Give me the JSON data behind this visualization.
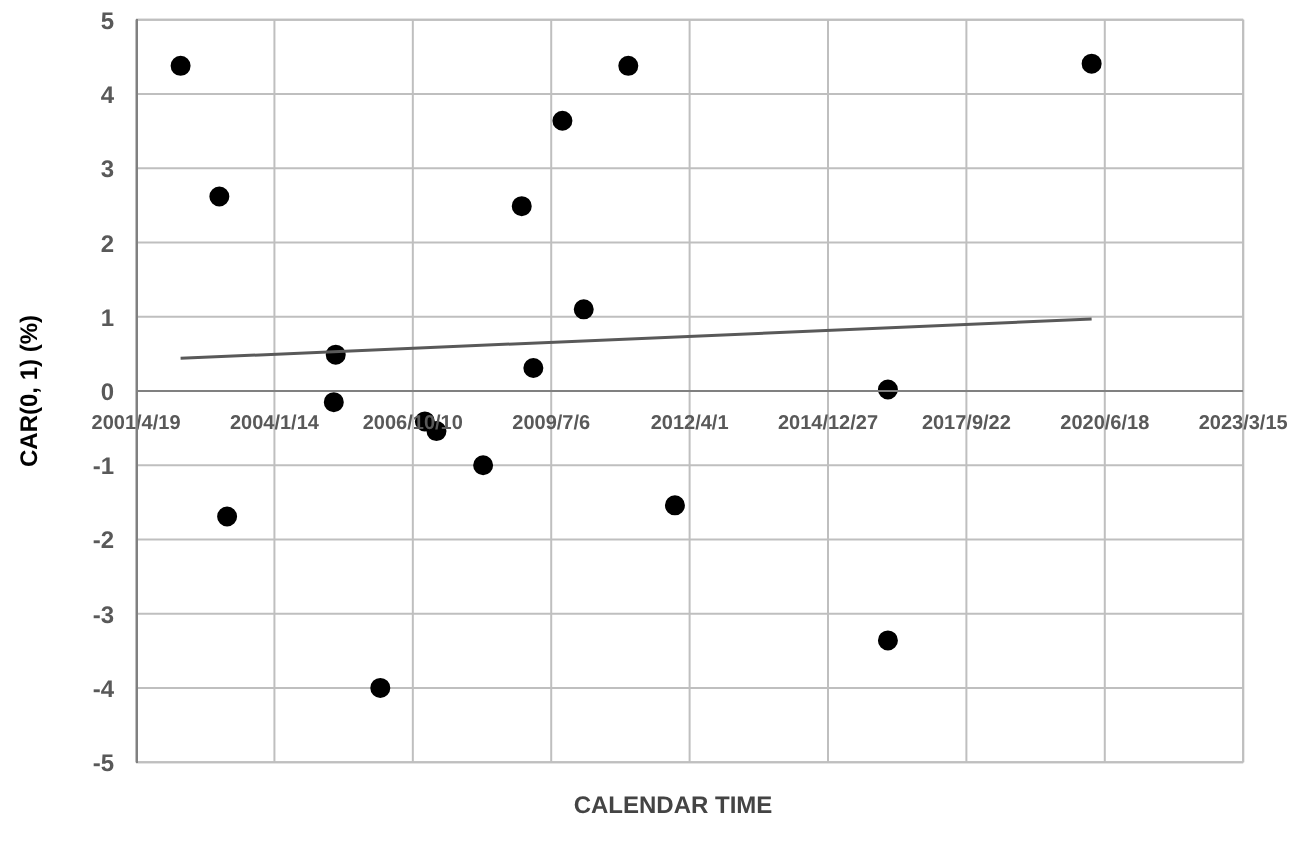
{
  "chart_data": {
    "type": "scatter",
    "xlabel": "CALENDAR TIME",
    "ylabel": "CAR(0, 1) (%)",
    "grid": true,
    "xlim": [
      "2001-04-19",
      "2023-03-15"
    ],
    "ylim": [
      -5,
      5
    ],
    "xticks": [
      {
        "value": "2001-04-19",
        "label": "2001/4/19"
      },
      {
        "value": "2004-01-14",
        "label": "2004/1/14"
      },
      {
        "value": "2006-10-10",
        "label": "2006/10/10"
      },
      {
        "value": "2009-07-06",
        "label": "2009/7/6"
      },
      {
        "value": "2012-04-01",
        "label": "2012/4/1"
      },
      {
        "value": "2014-12-27",
        "label": "2014/12/27"
      },
      {
        "value": "2017-09-22",
        "label": "2017/9/22"
      },
      {
        "value": "2020-06-18",
        "label": "2020/6/18"
      },
      {
        "value": "2023-03-15",
        "label": "2023/3/15"
      }
    ],
    "yticks": [
      -5,
      -4,
      -3,
      -2,
      -1,
      0,
      1,
      2,
      3,
      4,
      5
    ],
    "series": [
      {
        "color": "#000000",
        "marker": "circle",
        "x": [
          "2002-03-07",
          "2002-12-12",
          "2003-02-06",
          "2005-04-01",
          "2005-03-18",
          "2006-02-17",
          "2007-01-05",
          "2007-03-30",
          "2008-03-01",
          "2008-12-05",
          "2009-02-27",
          "2009-09-25",
          "2010-02-26",
          "2011-01-14",
          "2011-12-17",
          "2016-03-04",
          "2016-03-04",
          "2020-03-15"
        ],
        "values": [
          4.38,
          2.62,
          -1.69,
          0.49,
          -0.15,
          -4.0,
          -0.41,
          -0.54,
          -1.0,
          2.49,
          0.31,
          3.64,
          1.1,
          4.38,
          -1.54,
          0.02,
          -3.36,
          4.41
        ]
      },
      {
        "type": "line",
        "color": "#595959",
        "x": [
          "2002-03-07",
          "2020-03-15"
        ],
        "values": [
          0.44,
          0.97
        ]
      }
    ]
  }
}
